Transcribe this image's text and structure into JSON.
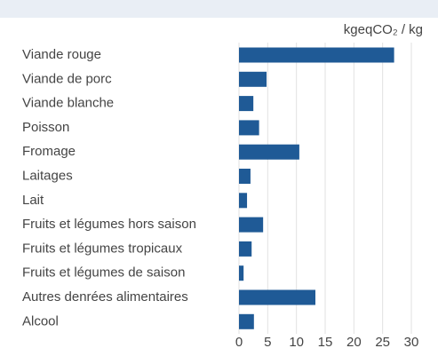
{
  "chart_data": {
    "type": "barh",
    "unit_label": "kgeqCO₂ / kg",
    "categories": [
      "Viande rouge",
      "Viande de porc",
      "Viande blanche",
      "Poisson",
      "Fromage",
      "Laitages",
      "Lait",
      "Fruits et légumes hors saison",
      "Fruits et légumes tropicaux",
      "Fruits et légumes de saison",
      "Autres denrées alimentaires",
      "Alcool"
    ],
    "values": [
      27,
      4.8,
      2.5,
      3.5,
      10.5,
      2,
      1.4,
      4.2,
      2.2,
      0.8,
      13.3,
      2.6
    ],
    "color": "#1f5a96",
    "xlim": [
      0,
      30
    ],
    "xticks": [
      0,
      5,
      10,
      15,
      20,
      25,
      30
    ],
    "grid": true
  }
}
